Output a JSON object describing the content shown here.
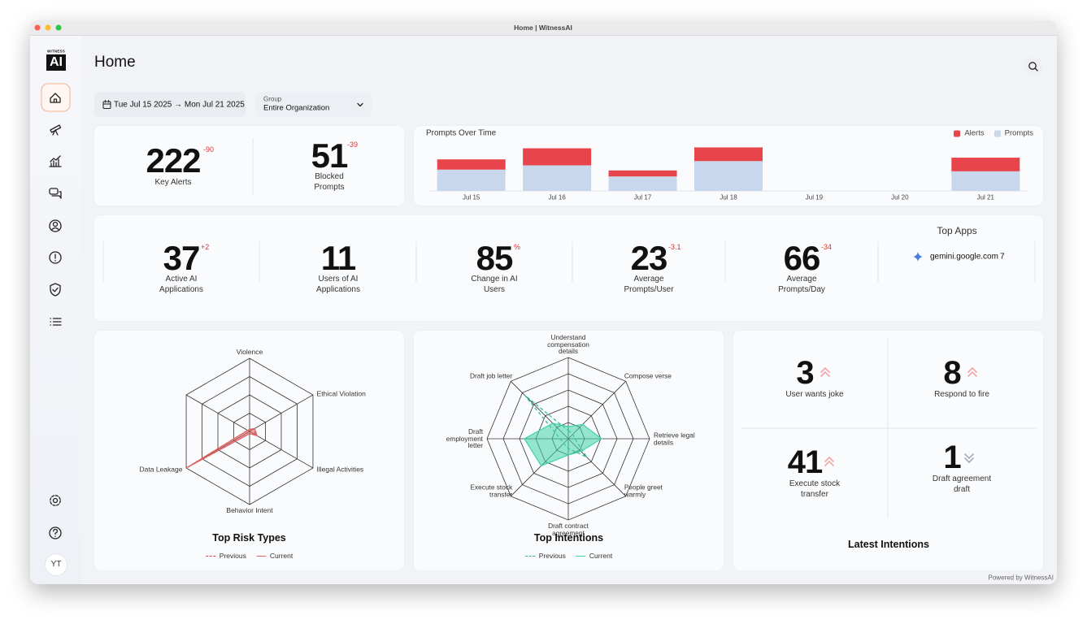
{
  "window": {
    "title": "Home | WitnessAI"
  },
  "logo": {
    "small": "WITNESS",
    "main": "AI"
  },
  "header": {
    "title": "Home"
  },
  "filters": {
    "date_range": "Tue Jul 15 2025 → Mon Jul 21 2025",
    "group": {
      "label": "Group",
      "value": "Entire Organization"
    }
  },
  "summary": [
    {
      "value": 222,
      "delta": -90,
      "label": "Key Alerts"
    },
    {
      "value": 51,
      "delta": -39,
      "label": "Blocked Prompts"
    }
  ],
  "prompts_chart": {
    "type": "bar",
    "stacked": true,
    "title": "Prompts Over Time",
    "categories": [
      "Jul 15",
      "Jul 16",
      "Jul 17",
      "Jul 18",
      "Jul 19",
      "Jul 20",
      "Jul 21"
    ],
    "series": [
      {
        "name": "Alerts",
        "color": "#e8444b",
        "values": [
          12,
          20,
          7,
          16,
          0,
          0,
          16
        ]
      },
      {
        "name": "Prompts",
        "color": "#c8d7ec",
        "values": [
          25,
          30,
          17,
          35,
          0,
          0,
          23
        ]
      }
    ],
    "ylim": [
      0,
      60
    ],
    "legend": "top-right"
  },
  "metrics": [
    {
      "value": 37,
      "delta": "+2",
      "label": "Active AI Applications"
    },
    {
      "value": 11,
      "label": "Users of AI Applications"
    },
    {
      "value": 85,
      "delta": "%",
      "label": "Change in AI Users"
    },
    {
      "value": 23,
      "delta": -3.1,
      "label": "Average Prompts/User"
    },
    {
      "value": 66,
      "delta": -34,
      "label": "Average Prompts/Day"
    }
  ],
  "top_apps": {
    "title": "Top Apps",
    "apps": [
      {
        "name": "gemini.google.com",
        "count": 7
      }
    ]
  },
  "risk_chart": {
    "type": "radar",
    "title": "Top Risk Types",
    "categories": [
      "Violence",
      "Ethical Violation",
      "Illegal Activities",
      "Behavior Intent",
      "Data Leakage",
      null
    ],
    "rlim": [
      0,
      100
    ],
    "rticks": [
      25,
      50,
      75,
      100
    ],
    "series": [
      {
        "name": "Previous",
        "color": "#d43a3a",
        "dashed": true,
        "fill": false,
        "values": [
          3,
          5,
          12,
          3,
          100,
          3
        ]
      },
      {
        "name": "Current",
        "color": "#e06565",
        "dashed": false,
        "fill": true,
        "values": [
          3,
          8,
          12,
          3,
          100,
          3
        ]
      }
    ]
  },
  "intentions_chart": {
    "type": "radar",
    "title": "Top Intentions",
    "categories": [
      "Understand compensation details",
      "Compose verse",
      "Retrieve legal details",
      "People greet warmly",
      "Draft contract agreement",
      "Execute stock transfer",
      "Draft employment letter",
      "Draft job letter"
    ],
    "rlim": [
      0,
      100
    ],
    "rticks": [
      20,
      40,
      60,
      80,
      100
    ],
    "series": [
      {
        "name": "Previous",
        "color": "#22b98f",
        "dashed": true,
        "fill": false,
        "values": [
          10,
          8,
          8,
          32,
          12,
          8,
          10,
          76
        ]
      },
      {
        "name": "Current",
        "color": "#3fd3a6",
        "dashed": false,
        "fill": true,
        "values": [
          15,
          25,
          41,
          22,
          20,
          47,
          54,
          27
        ]
      }
    ]
  },
  "latest_intentions": {
    "title": "Latest Intentions",
    "items": [
      {
        "count": 3,
        "label": "User wants joke",
        "trend": "up"
      },
      {
        "count": 8,
        "label": "Respond to fire",
        "trend": "up"
      },
      {
        "count": 41,
        "label": "Execute stock transfer",
        "trend": "up"
      },
      {
        "count": 1,
        "label": "Draft agreement draft",
        "trend": "down"
      }
    ]
  },
  "user": {
    "initials": "YT"
  },
  "footer": {
    "text": "Powered by WitnessAI"
  }
}
